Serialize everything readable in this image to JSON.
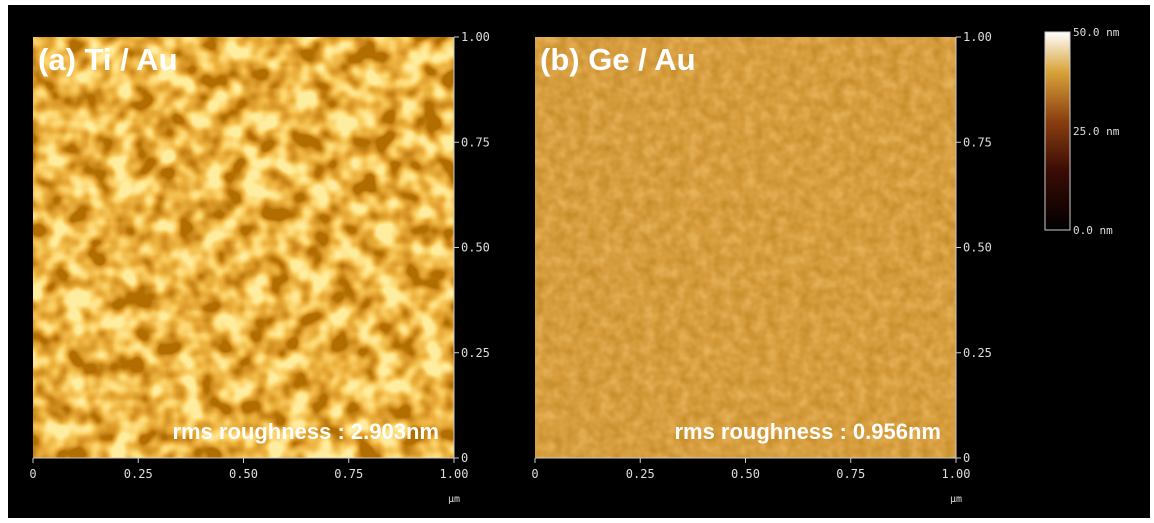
{
  "panels": [
    {
      "label": "(a) Ti / Au",
      "note": "rms roughness : 2.903nm",
      "x_ticks": [
        "0",
        "0.25",
        "0.50",
        "0.75",
        "1.00"
      ],
      "y_ticks": [
        "0",
        "0.25",
        "0.50",
        "0.75",
        "1.00"
      ],
      "unit": "µm"
    },
    {
      "label": "(b) Ge / Au",
      "note": "rms roughness : 0.956nm",
      "x_ticks": [
        "0",
        "0.25",
        "0.50",
        "0.75",
        "1.00"
      ],
      "y_ticks": [
        "0",
        "0.25",
        "0.50",
        "0.75",
        "1.00"
      ],
      "unit": "µm"
    }
  ],
  "colorbar": {
    "labels": [
      "50.0 nm",
      "25.0 nm",
      "0.0 nm"
    ]
  }
}
